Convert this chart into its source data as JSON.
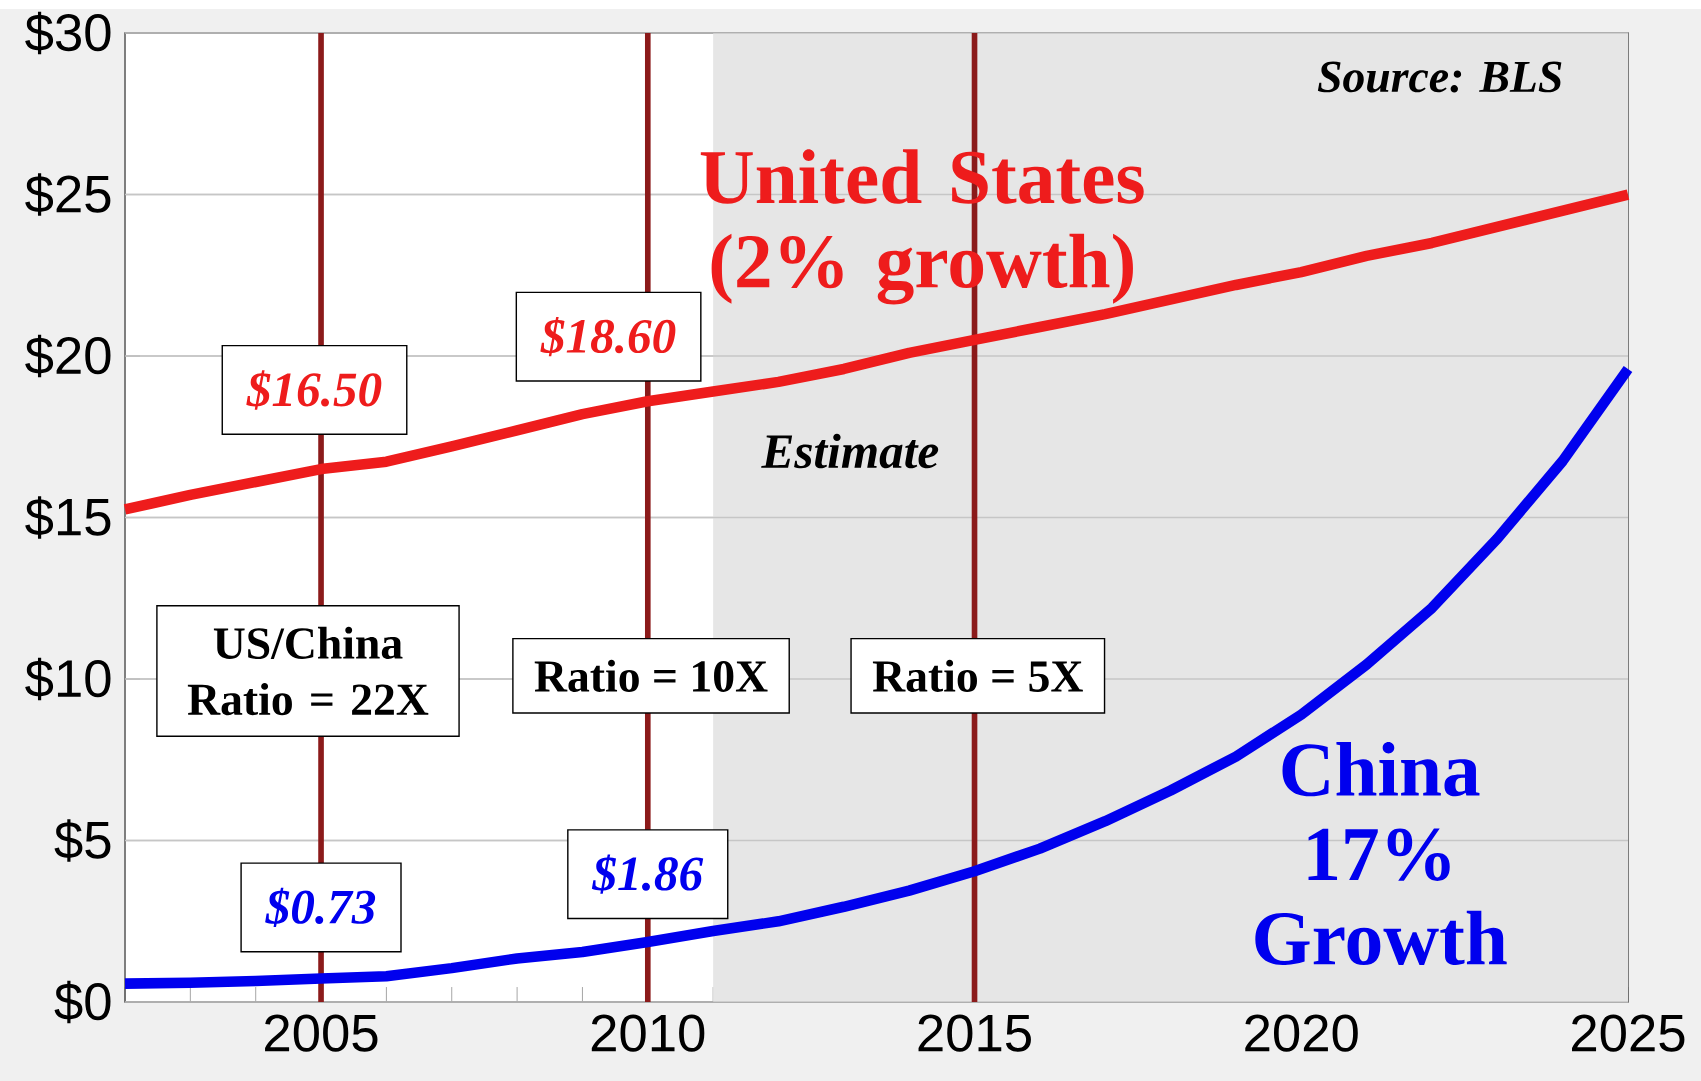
{
  "chart_data": {
    "type": "line",
    "x": [
      2002,
      2003,
      2004,
      2005,
      2006,
      2007,
      2008,
      2009,
      2010,
      2011,
      2012,
      2013,
      2014,
      2015,
      2016,
      2017,
      2018,
      2019,
      2020,
      2021,
      2022,
      2023,
      2024,
      2025
    ],
    "series": [
      {
        "name": "United States (2% growth)",
        "color": "#ee1c1c",
        "values": [
          15.25,
          15.7,
          16.1,
          16.5,
          16.73,
          17.2,
          17.7,
          18.2,
          18.6,
          18.9,
          19.2,
          19.6,
          20.1,
          20.5,
          20.9,
          21.3,
          21.75,
          22.2,
          22.6,
          23.1,
          23.5,
          24.0,
          24.5,
          25.0
        ],
        "value_labels": [
          null,
          null,
          null,
          "$16.50",
          null,
          null,
          null,
          null,
          "$18.60",
          null,
          null,
          null,
          null,
          null,
          null,
          null,
          null,
          null,
          null,
          null,
          null,
          null,
          null,
          null
        ]
      },
      {
        "name": "China 17% Growth",
        "color": "#0000ee",
        "values": [
          0.57,
          0.6,
          0.65,
          0.73,
          0.8,
          1.05,
          1.35,
          1.55,
          1.86,
          2.2,
          2.5,
          2.95,
          3.45,
          4.05,
          4.75,
          5.6,
          6.55,
          7.6,
          8.9,
          10.45,
          12.2,
          14.35,
          16.75,
          19.6
        ],
        "value_labels": [
          null,
          null,
          null,
          "$0.73",
          null,
          null,
          null,
          null,
          "$1.86",
          null,
          null,
          null,
          null,
          null,
          null,
          null,
          null,
          null,
          null,
          null,
          null,
          null,
          null,
          null
        ]
      }
    ],
    "xlim": [
      2002,
      2025
    ],
    "ylim": [
      0,
      30
    ],
    "xticks": [
      {
        "value": 2002,
        "label": null
      },
      {
        "value": 2003,
        "label": null
      },
      {
        "value": 2004,
        "label": null
      },
      2005,
      {
        "value": 2006,
        "label": null
      },
      {
        "value": 2007,
        "label": null
      },
      {
        "value": 2008,
        "label": null
      },
      {
        "value": 2009,
        "label": null
      },
      2010,
      {
        "value": 2011,
        "label": null
      },
      {
        "value": 2012,
        "label": null
      },
      {
        "value": 2013,
        "label": null
      },
      {
        "value": 2014,
        "label": null
      },
      2015,
      {
        "value": 2016,
        "label": null
      },
      {
        "value": 2017,
        "label": null
      },
      {
        "value": 2018,
        "label": null
      },
      {
        "value": 2019,
        "label": null
      },
      2020,
      {
        "value": 2021,
        "label": null
      },
      {
        "value": 2022,
        "label": null
      },
      {
        "value": 2023,
        "label": null
      },
      {
        "value": 2024,
        "label": null
      },
      2025
    ],
    "yticks": [
      {
        "value": 0,
        "label": "$0"
      },
      {
        "value": 5,
        "label": "$5"
      },
      {
        "value": 10,
        "label": "$10"
      },
      {
        "value": 15,
        "label": "$15"
      },
      {
        "value": 20,
        "label": "$20"
      },
      {
        "value": 25,
        "label": "$25"
      },
      {
        "value": 30,
        "label": "$30"
      }
    ],
    "grid": "y",
    "line_style": "solid",
    "ref_lines": [
      {
        "axis": "x",
        "value": 2005,
        "color": "#8b1a1a"
      },
      {
        "axis": "x",
        "value": 2010,
        "color": "#8b1a1a"
      },
      {
        "axis": "x",
        "value": 2015,
        "color": "#8b1a1a"
      }
    ],
    "bands": [
      {
        "axis": "x",
        "from": 2011,
        "to": 2025,
        "label": "Estimate",
        "color": "#e6e6e6"
      }
    ],
    "annotations": [
      "Source: BLS",
      "US/China Ratio = 22X",
      "Ratio = 10X",
      "Ratio = 5X"
    ]
  }
}
